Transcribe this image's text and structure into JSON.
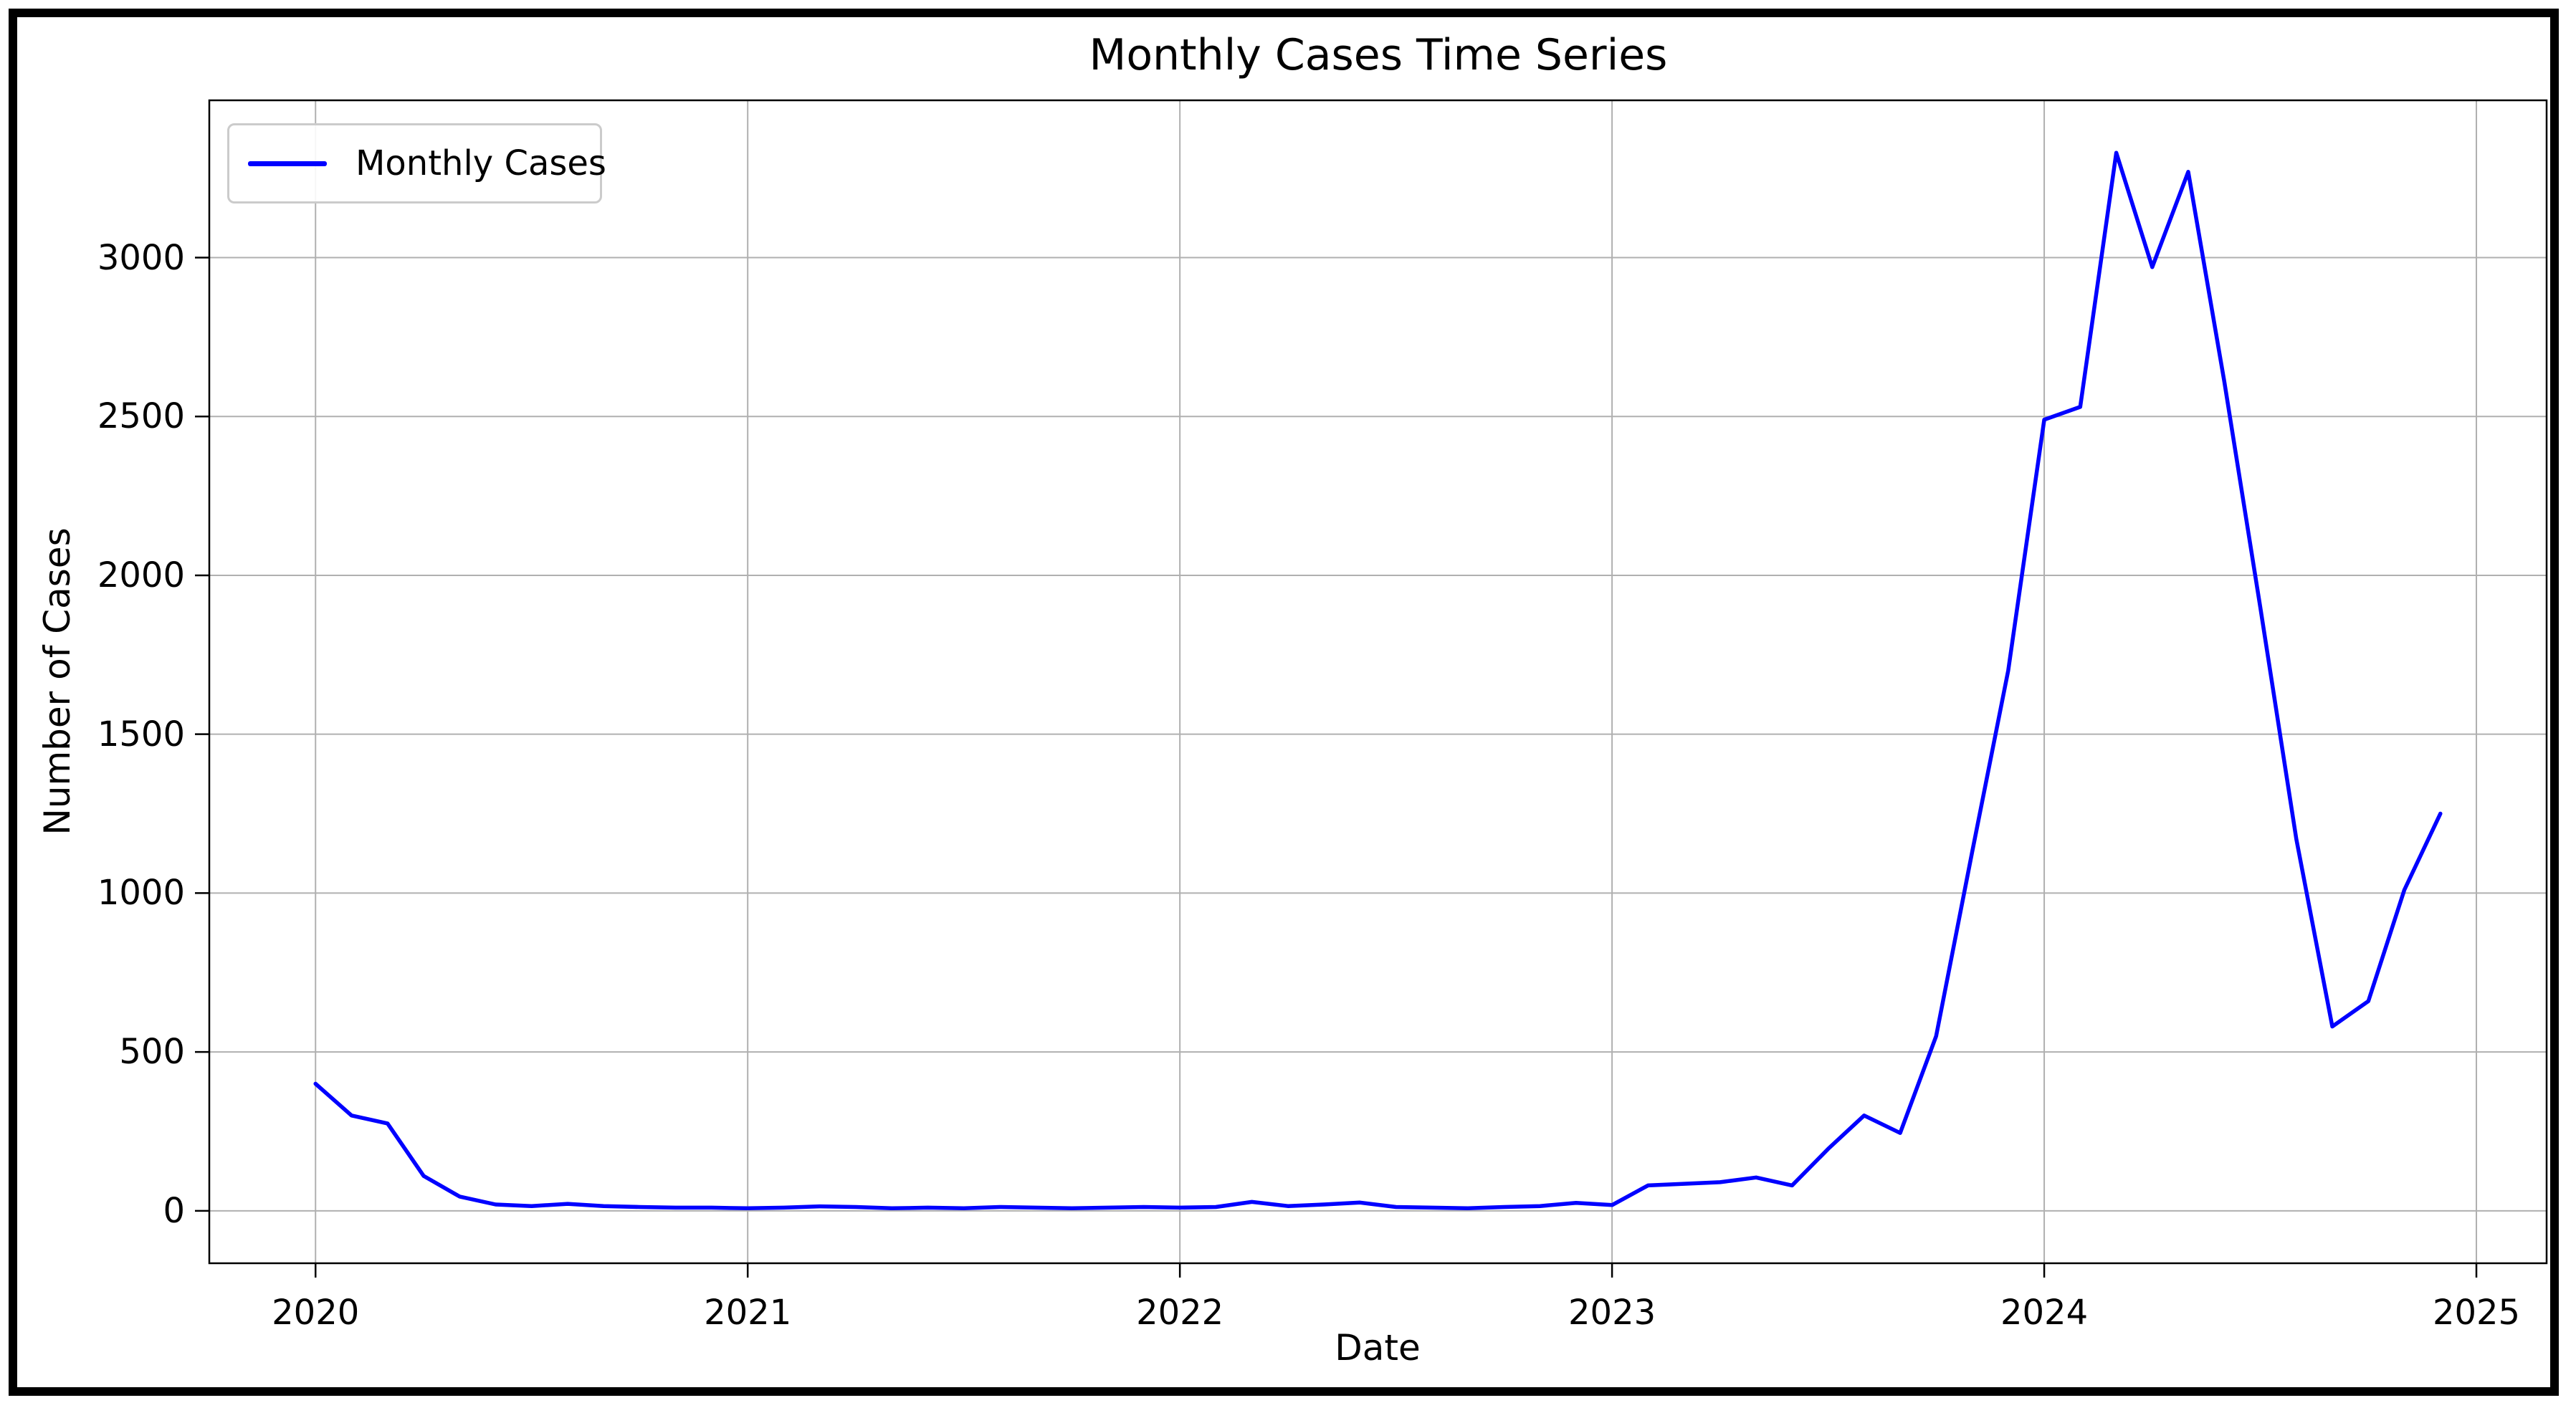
{
  "figure": {
    "background": "#ffffff",
    "border_color": "#000000"
  },
  "chart_data": {
    "type": "line",
    "title": "Monthly Cases Time Series",
    "xlabel": "Date",
    "ylabel": "Number of Cases",
    "legend": {
      "label": "Monthly Cases",
      "position": "upper left"
    },
    "line_color": "#0000ff",
    "grid": true,
    "grid_color": "#b0b0b0",
    "spine_color": "#000000",
    "ylim": [
      -165,
      3495
    ],
    "y_ticks": [
      0,
      500,
      1000,
      1500,
      2000,
      2500,
      3000
    ],
    "x_ticks": [
      "2020",
      "2021",
      "2022",
      "2023",
      "2024",
      "2025"
    ],
    "x_start_year": 2020,
    "x": [
      "2020-01",
      "2020-02",
      "2020-03",
      "2020-04",
      "2020-05",
      "2020-06",
      "2020-07",
      "2020-08",
      "2020-09",
      "2020-10",
      "2020-11",
      "2020-12",
      "2021-01",
      "2021-02",
      "2021-03",
      "2021-04",
      "2021-05",
      "2021-06",
      "2021-07",
      "2021-08",
      "2021-09",
      "2021-10",
      "2021-11",
      "2021-12",
      "2022-01",
      "2022-02",
      "2022-03",
      "2022-04",
      "2022-05",
      "2022-06",
      "2022-07",
      "2022-08",
      "2022-09",
      "2022-10",
      "2022-11",
      "2022-12",
      "2023-01",
      "2023-02",
      "2023-03",
      "2023-04",
      "2023-05",
      "2023-06",
      "2023-07",
      "2023-08",
      "2023-09",
      "2023-10",
      "2023-11",
      "2023-12",
      "2024-01",
      "2024-02",
      "2024-03",
      "2024-04",
      "2024-05",
      "2024-06",
      "2024-07",
      "2024-08",
      "2024-09",
      "2024-10",
      "2024-11",
      "2024-12"
    ],
    "values": [
      400,
      300,
      275,
      110,
      45,
      20,
      15,
      22,
      15,
      12,
      10,
      10,
      8,
      10,
      14,
      12,
      8,
      10,
      8,
      12,
      10,
      8,
      10,
      12,
      10,
      12,
      28,
      15,
      20,
      26,
      12,
      10,
      8,
      12,
      15,
      25,
      18,
      80,
      85,
      90,
      105,
      80,
      195,
      300,
      245,
      550,
      1130,
      1700,
      2490,
      2530,
      3330,
      2970,
      3270,
      2610,
      1900,
      1170,
      580,
      660,
      1010,
      1250
    ]
  }
}
